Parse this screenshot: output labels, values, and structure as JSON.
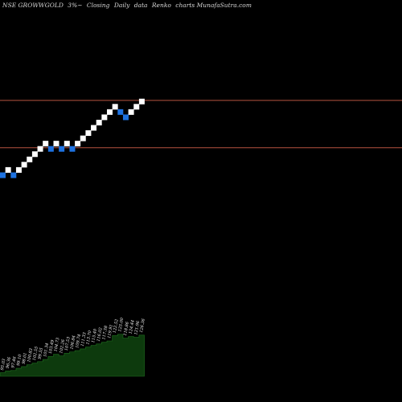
{
  "header": {
    "symbol": "NSE GROWWGOLD",
    "box_size": "3%",
    "price_type": "Closing",
    "frequency": "Daily",
    "chart_style": "Renko",
    "source": "charts MunafaSutra.com"
  },
  "colors": {
    "background": "#000000",
    "up_brick": "#ffffff",
    "down_brick": "#1e72e0",
    "resistance_line": "#b5533f",
    "volume_fill": "#0d3a0d"
  },
  "chart_data": {
    "type": "renko",
    "title": "NSE GROWWGOLD 3%~ Closing Daily data Renko charts MunafaSutra.com",
    "direction_legend": {
      "up": "white",
      "down": "blue"
    },
    "bricks": [
      {
        "col": 0,
        "level": 0,
        "dir": "down"
      },
      {
        "col": 1,
        "level": 1,
        "dir": "up"
      },
      {
        "col": 2,
        "level": 0,
        "dir": "down"
      },
      {
        "col": 3,
        "level": 1,
        "dir": "up"
      },
      {
        "col": 4,
        "level": 2,
        "dir": "up"
      },
      {
        "col": 5,
        "level": 3,
        "dir": "up"
      },
      {
        "col": 6,
        "level": 4,
        "dir": "up"
      },
      {
        "col": 7,
        "level": 5,
        "dir": "up"
      },
      {
        "col": 8,
        "level": 6,
        "dir": "up"
      },
      {
        "col": 9,
        "level": 5,
        "dir": "down"
      },
      {
        "col": 10,
        "level": 6,
        "dir": "up"
      },
      {
        "col": 11,
        "level": 5,
        "dir": "down"
      },
      {
        "col": 12,
        "level": 6,
        "dir": "up"
      },
      {
        "col": 13,
        "level": 5,
        "dir": "down"
      },
      {
        "col": 14,
        "level": 6,
        "dir": "up"
      },
      {
        "col": 15,
        "level": 7,
        "dir": "up"
      },
      {
        "col": 16,
        "level": 8,
        "dir": "up"
      },
      {
        "col": 17,
        "level": 9,
        "dir": "up"
      },
      {
        "col": 18,
        "level": 10,
        "dir": "up"
      },
      {
        "col": 19,
        "level": 11,
        "dir": "up"
      },
      {
        "col": 20,
        "level": 12,
        "dir": "up"
      },
      {
        "col": 21,
        "level": 13,
        "dir": "up"
      },
      {
        "col": 22,
        "level": 12,
        "dir": "down"
      },
      {
        "col": 23,
        "level": 11,
        "dir": "down"
      },
      {
        "col": 24,
        "level": 12,
        "dir": "up"
      },
      {
        "col": 25,
        "level": 13,
        "dir": "up"
      },
      {
        "col": 26,
        "level": 14,
        "dir": "up"
      }
    ],
    "reference_levels": [
      {
        "name": "upper",
        "brick_level": 14
      },
      {
        "name": "lower",
        "brick_level": 5
      }
    ],
    "brick_labels": [
      "95.03",
      "96.36",
      "97.46",
      "99.10",
      "98.01",
      "100.83",
      "102.55",
      "99.55",
      "101.34",
      "103.49",
      "104.73",
      "102.26",
      "107.53",
      "106.84",
      "109.74",
      "111.33",
      "113.70",
      "115.40",
      "116.02",
      "117.38",
      "119.91",
      "122.52",
      "125.00",
      "118.86",
      "124.44",
      "121.96",
      "126.36"
    ],
    "volume": [
      0.08,
      0.12,
      0.13,
      0.18,
      0.22,
      0.26,
      0.3,
      0.33,
      0.38,
      0.45,
      0.5,
      0.46,
      0.52,
      0.55,
      0.58,
      0.62,
      0.66,
      0.7,
      0.73,
      0.77,
      0.8,
      0.92,
      0.95,
      0.86,
      0.9,
      0.88,
      0.93
    ]
  }
}
